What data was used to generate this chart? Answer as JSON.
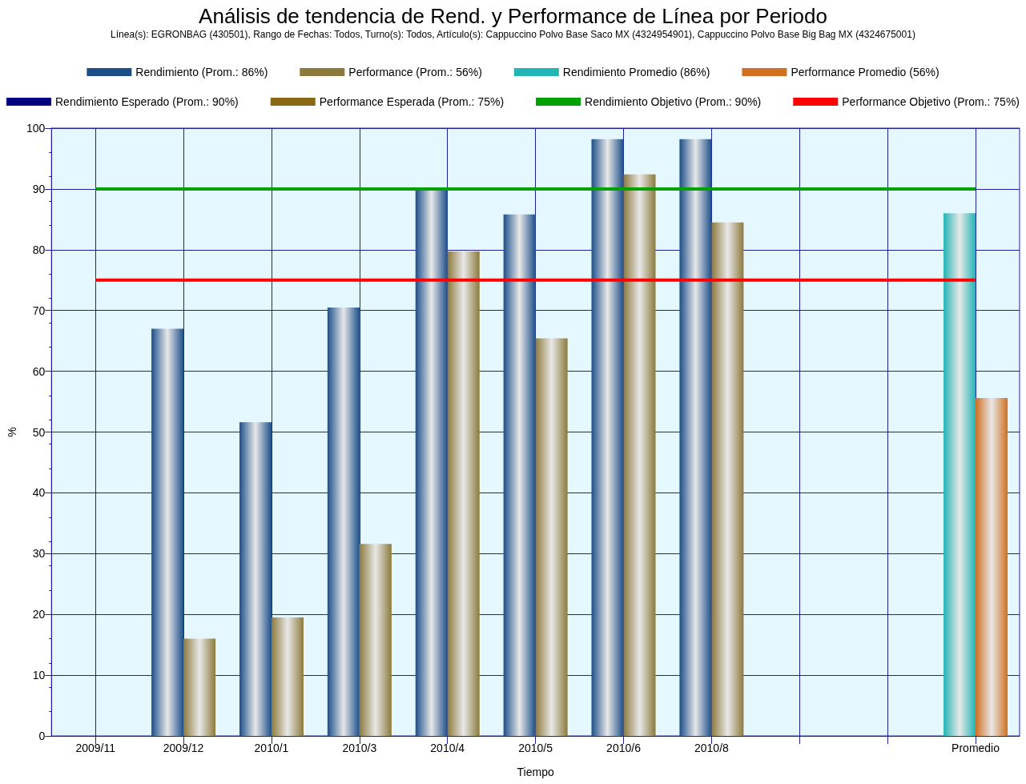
{
  "chart_data": {
    "type": "bar",
    "title": "Análisis de tendencia de Rend. y Performance de Línea por Periodo",
    "subtitle": "Línea(s): EGRONBAG (430501), Rango de Fechas: Todos, Turno(s): Todos, Artículo(s): Cappuccino Polvo Base Saco MX (4324954901), Cappuccino Polvo Base Big Bag MX (4324675001)",
    "xlabel": "Tiempo",
    "ylabel": "%",
    "categories": [
      "2009/11",
      "2009/12",
      "2010/1",
      "2010/3",
      "2010/4",
      "2010/5",
      "2010/6",
      "2010/8",
      null,
      null,
      "Promedio"
    ],
    "series": [
      {
        "name": "Rendimiento (Prom.: 86%)",
        "color": "#1c4f8a",
        "values": [
          null,
          67,
          51.6,
          70.5,
          90,
          85.8,
          98.2,
          98.2,
          null,
          null,
          null
        ]
      },
      {
        "name": "Performance (Prom.: 56%)",
        "color": "#8c7a3c",
        "values": [
          null,
          16,
          19.5,
          31.6,
          79.7,
          65.4,
          92.4,
          84.5,
          null,
          null,
          null
        ]
      },
      {
        "name": "Rendimiento Promedio (86%)",
        "color": "#22b5b5",
        "values": [
          null,
          null,
          null,
          null,
          null,
          null,
          null,
          null,
          null,
          null,
          86
        ]
      },
      {
        "name": "Performance Promedio (56%)",
        "color": "#d07020",
        "values": [
          null,
          null,
          null,
          null,
          null,
          null,
          null,
          null,
          null,
          null,
          55.6
        ]
      },
      {
        "name": "Rendimiento Esperado (Prom.: 90%)",
        "type": "line",
        "color": "#000080",
        "values": [
          null,
          null,
          null,
          null,
          null,
          null,
          null,
          null,
          null,
          null,
          null
        ]
      },
      {
        "name": "Performance Esperada (Prom.: 75%)",
        "type": "line",
        "color": "#8b6914",
        "values": [
          null,
          null,
          null,
          null,
          null,
          null,
          null,
          null,
          null,
          null,
          null
        ]
      },
      {
        "name": "Rendimiento Objetivo (Prom.: 90%)",
        "type": "line",
        "color": "#00a000",
        "values": [
          90,
          90,
          90,
          90,
          90,
          90,
          90,
          90,
          90,
          90,
          90
        ]
      },
      {
        "name": "Performance Objetivo (Prom.: 75%)",
        "type": "line",
        "color": "#ff0000",
        "values": [
          75,
          75,
          75,
          75,
          75,
          75,
          75,
          75,
          75,
          75,
          75
        ]
      }
    ],
    "ylim": [
      0,
      100
    ],
    "yticks": [
      0,
      10,
      20,
      30,
      40,
      50,
      60,
      70,
      80,
      90,
      100
    ],
    "grid": true,
    "legend": "top",
    "marker": "none",
    "line_style": "solid"
  }
}
